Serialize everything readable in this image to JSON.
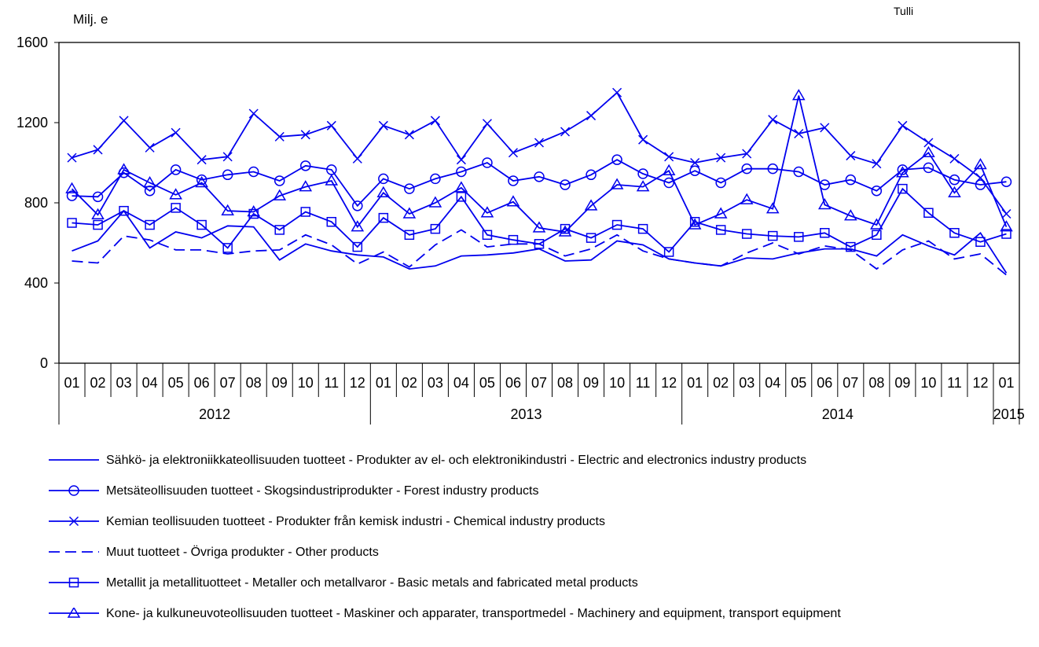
{
  "header": {
    "unit_label": "Milj. e",
    "source_label": "Tulli"
  },
  "colors": {
    "series": "#0000EE",
    "axis": "#000000"
  },
  "chart_data": {
    "type": "line",
    "title": "",
    "ylabel": "Milj. e",
    "ylim": [
      0,
      1600
    ],
    "yticks": [
      0,
      400,
      800,
      1200,
      1600
    ],
    "grid": false,
    "legend_position": "bottom",
    "month_labels": [
      "01",
      "02",
      "03",
      "04",
      "05",
      "06",
      "07",
      "08",
      "09",
      "10",
      "11",
      "12",
      "01",
      "02",
      "03",
      "04",
      "05",
      "06",
      "07",
      "08",
      "09",
      "10",
      "11",
      "12",
      "01",
      "02",
      "03",
      "04",
      "05",
      "06",
      "07",
      "08",
      "09",
      "10",
      "11",
      "12",
      "01"
    ],
    "year_labels": [
      "2012",
      "2013",
      "2014",
      "2015"
    ],
    "series": [
      {
        "name": "Sähkö- ja elektroniikkateollisuuden tuotteet - Produkter av el- och elektronikindustri - Electric and electronics industry products",
        "marker": "none",
        "dash": false,
        "values": [
          560,
          610,
          760,
          575,
          655,
          625,
          685,
          680,
          515,
          595,
          560,
          540,
          530,
          470,
          485,
          535,
          540,
          550,
          570,
          510,
          515,
          610,
          590,
          520,
          500,
          485,
          525,
          520,
          550,
          570,
          570,
          535,
          640,
          585,
          540,
          650,
          450
        ]
      },
      {
        "name": "Metsäteollisuuden tuotteet - Skogsindustriprodukter - Forest industry products",
        "marker": "circle",
        "dash": false,
        "values": [
          835,
          830,
          950,
          860,
          965,
          915,
          940,
          955,
          910,
          985,
          965,
          785,
          920,
          870,
          920,
          955,
          1000,
          910,
          930,
          890,
          940,
          1015,
          945,
          900,
          960,
          900,
          970,
          970,
          955,
          890,
          915,
          860,
          965,
          975,
          915,
          890,
          905
        ]
      },
      {
        "name": "Kemian teollisuuden tuotteet - Produkter från kemisk industri - Chemical industry products",
        "marker": "x",
        "dash": false,
        "values": [
          1025,
          1065,
          1210,
          1075,
          1150,
          1015,
          1030,
          1245,
          1130,
          1140,
          1185,
          1020,
          1185,
          1140,
          1210,
          1015,
          1195,
          1050,
          1100,
          1155,
          1235,
          1350,
          1115,
          1030,
          1000,
          1025,
          1045,
          1215,
          1145,
          1175,
          1035,
          995,
          1185,
          1100,
          1020,
          925,
          745
        ]
      },
      {
        "name": "Muut tuotteet - Övriga produkter - Other products",
        "marker": "none",
        "dash": true,
        "values": [
          510,
          500,
          635,
          615,
          565,
          565,
          545,
          560,
          565,
          640,
          590,
          495,
          555,
          480,
          590,
          665,
          580,
          595,
          595,
          535,
          570,
          640,
          560,
          520,
          500,
          485,
          550,
          600,
          545,
          585,
          565,
          470,
          565,
          610,
          520,
          545,
          440
        ]
      },
      {
        "name": "Metallit ja metallituotteet - Metaller och metallvaror - Basic metals and fabricated metal products",
        "marker": "square",
        "dash": false,
        "values": [
          700,
          690,
          760,
          690,
          775,
          690,
          575,
          745,
          665,
          755,
          705,
          580,
          725,
          640,
          670,
          830,
          640,
          615,
          595,
          670,
          625,
          690,
          670,
          555,
          705,
          665,
          645,
          635,
          630,
          650,
          580,
          640,
          870,
          750,
          650,
          605,
          645
        ]
      },
      {
        "name": "Kone- ja kulkuneuvoteollisuuden tuotteet - Maskiner och apparater, transportmedel -  Machinery and equipment, transport equipment",
        "marker": "triangle",
        "dash": false,
        "values": [
          870,
          740,
          965,
          900,
          840,
          900,
          760,
          755,
          835,
          880,
          910,
          680,
          850,
          745,
          800,
          875,
          750,
          805,
          675,
          655,
          785,
          890,
          880,
          960,
          690,
          745,
          815,
          770,
          1335,
          790,
          735,
          690,
          950,
          1050,
          850,
          990,
          680
        ]
      }
    ]
  }
}
